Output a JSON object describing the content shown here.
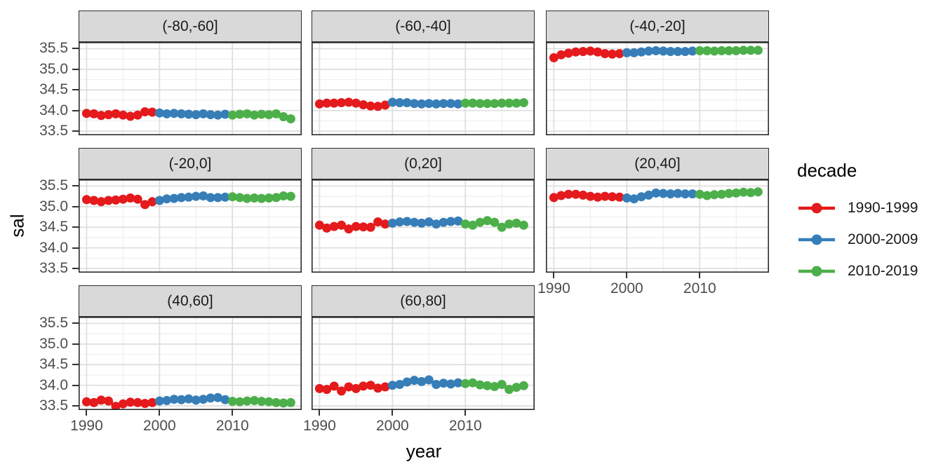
{
  "figure": {
    "y_axis_title": "sal",
    "x_axis_title": "year",
    "x_ticks": [
      1990,
      2000,
      2010
    ],
    "x_minor": [
      1995,
      2005,
      2015
    ],
    "y_ticks": [
      "33.5",
      "34.0",
      "34.5",
      "35.0",
      "35.5"
    ],
    "y_minor": [
      33.75,
      34.25,
      34.75,
      35.25
    ],
    "panel_background": "#ffffff",
    "strip_background": "#d9d9d9",
    "major_grid_color": "#dedede",
    "minor_grid_color": "#efefef",
    "border_color": "#2b2b2b",
    "tick_text_color": "#4d4d4d"
  },
  "legend": {
    "title": "decade",
    "items": [
      {
        "label": "1990-1999",
        "color": "#e41a1c"
      },
      {
        "label": "2000-2009",
        "color": "#377eb8"
      },
      {
        "label": "2010-2019",
        "color": "#4daf4a"
      }
    ]
  },
  "chart_data": {
    "type": "scatter",
    "title": "",
    "xlabel": "year",
    "ylabel": "sal",
    "facet_variable": "latitude band",
    "legend_variable": "decade",
    "xlim": [
      1988.9,
      2019.5
    ],
    "ylim": [
      33.4,
      35.66
    ],
    "grid": true,
    "legend_position": "right",
    "decades": [
      {
        "name": "1990-1999",
        "color": "#e41a1c",
        "year_start": 1990,
        "year_end": 1999
      },
      {
        "name": "2000-2009",
        "color": "#377eb8",
        "year_start": 2000,
        "year_end": 2009
      },
      {
        "name": "2010-2019",
        "color": "#4daf4a",
        "year_start": 2010,
        "year_end": 2018
      }
    ],
    "years": [
      1990,
      1991,
      1992,
      1993,
      1994,
      1995,
      1996,
      1997,
      1998,
      1999,
      2000,
      2001,
      2002,
      2003,
      2004,
      2005,
      2006,
      2007,
      2008,
      2009,
      2010,
      2011,
      2012,
      2013,
      2014,
      2015,
      2016,
      2017,
      2018
    ],
    "facets": [
      {
        "label": "(-80,-60]",
        "values": [
          33.93,
          33.92,
          33.88,
          33.9,
          33.92,
          33.89,
          33.86,
          33.89,
          33.97,
          33.96,
          33.94,
          33.92,
          33.93,
          33.92,
          33.91,
          33.9,
          33.92,
          33.9,
          33.89,
          33.91,
          33.89,
          33.91,
          33.92,
          33.89,
          33.91,
          33.9,
          33.92,
          33.85,
          33.8
        ]
      },
      {
        "label": "(-60,-40]",
        "values": [
          34.16,
          34.18,
          34.18,
          34.19,
          34.2,
          34.18,
          34.14,
          34.11,
          34.1,
          34.13,
          34.2,
          34.19,
          34.19,
          34.17,
          34.16,
          34.17,
          34.16,
          34.17,
          34.17,
          34.16,
          34.18,
          34.18,
          34.17,
          34.17,
          34.17,
          34.18,
          34.18,
          34.18,
          34.19
        ]
      },
      {
        "label": "(-40,-20]",
        "values": [
          35.28,
          35.35,
          35.39,
          35.42,
          35.43,
          35.44,
          35.42,
          35.38,
          35.37,
          35.38,
          35.4,
          35.4,
          35.42,
          35.44,
          35.45,
          35.44,
          35.43,
          35.43,
          35.43,
          35.44,
          35.45,
          35.45,
          35.44,
          35.45,
          35.45,
          35.45,
          35.46,
          35.46,
          35.46
        ]
      },
      {
        "label": "(-20,0]",
        "values": [
          35.17,
          35.15,
          35.12,
          35.15,
          35.16,
          35.18,
          35.21,
          35.18,
          35.05,
          35.12,
          35.15,
          35.19,
          35.2,
          35.22,
          35.23,
          35.25,
          35.26,
          35.22,
          35.22,
          35.23,
          35.24,
          35.22,
          35.2,
          35.21,
          35.2,
          35.21,
          35.22,
          35.26,
          35.25
        ]
      },
      {
        "label": "(0,20]",
        "values": [
          34.55,
          34.48,
          34.52,
          34.55,
          34.46,
          34.52,
          34.51,
          34.5,
          34.63,
          34.58,
          34.6,
          34.63,
          34.64,
          34.62,
          34.6,
          34.63,
          34.58,
          34.62,
          34.64,
          34.65,
          34.58,
          34.55,
          34.62,
          34.66,
          34.62,
          34.5,
          34.58,
          34.6,
          34.55
        ]
      },
      {
        "label": "(20,40]",
        "values": [
          35.22,
          35.27,
          35.3,
          35.3,
          35.28,
          35.25,
          35.23,
          35.25,
          35.24,
          35.23,
          35.21,
          35.19,
          35.24,
          35.28,
          35.33,
          35.32,
          35.31,
          35.32,
          35.31,
          35.31,
          35.3,
          35.27,
          35.29,
          35.3,
          35.32,
          35.33,
          35.35,
          35.34,
          35.36
        ]
      },
      {
        "label": "(40,60]",
        "values": [
          33.6,
          33.58,
          33.64,
          33.62,
          33.49,
          33.55,
          33.59,
          33.58,
          33.56,
          33.58,
          33.62,
          33.63,
          33.66,
          33.65,
          33.67,
          33.64,
          33.66,
          33.69,
          33.7,
          33.65,
          33.61,
          33.6,
          33.62,
          33.63,
          33.61,
          33.6,
          33.58,
          33.57,
          33.58
        ]
      },
      {
        "label": "(60,80]",
        "values": [
          33.92,
          33.9,
          33.98,
          33.86,
          33.96,
          33.92,
          33.98,
          34.0,
          33.93,
          33.96,
          34.0,
          34.02,
          34.08,
          34.12,
          34.09,
          34.13,
          34.02,
          34.05,
          34.03,
          34.06,
          34.04,
          34.06,
          34.01,
          33.99,
          33.97,
          34.02,
          33.9,
          33.95,
          33.99
        ]
      }
    ]
  }
}
